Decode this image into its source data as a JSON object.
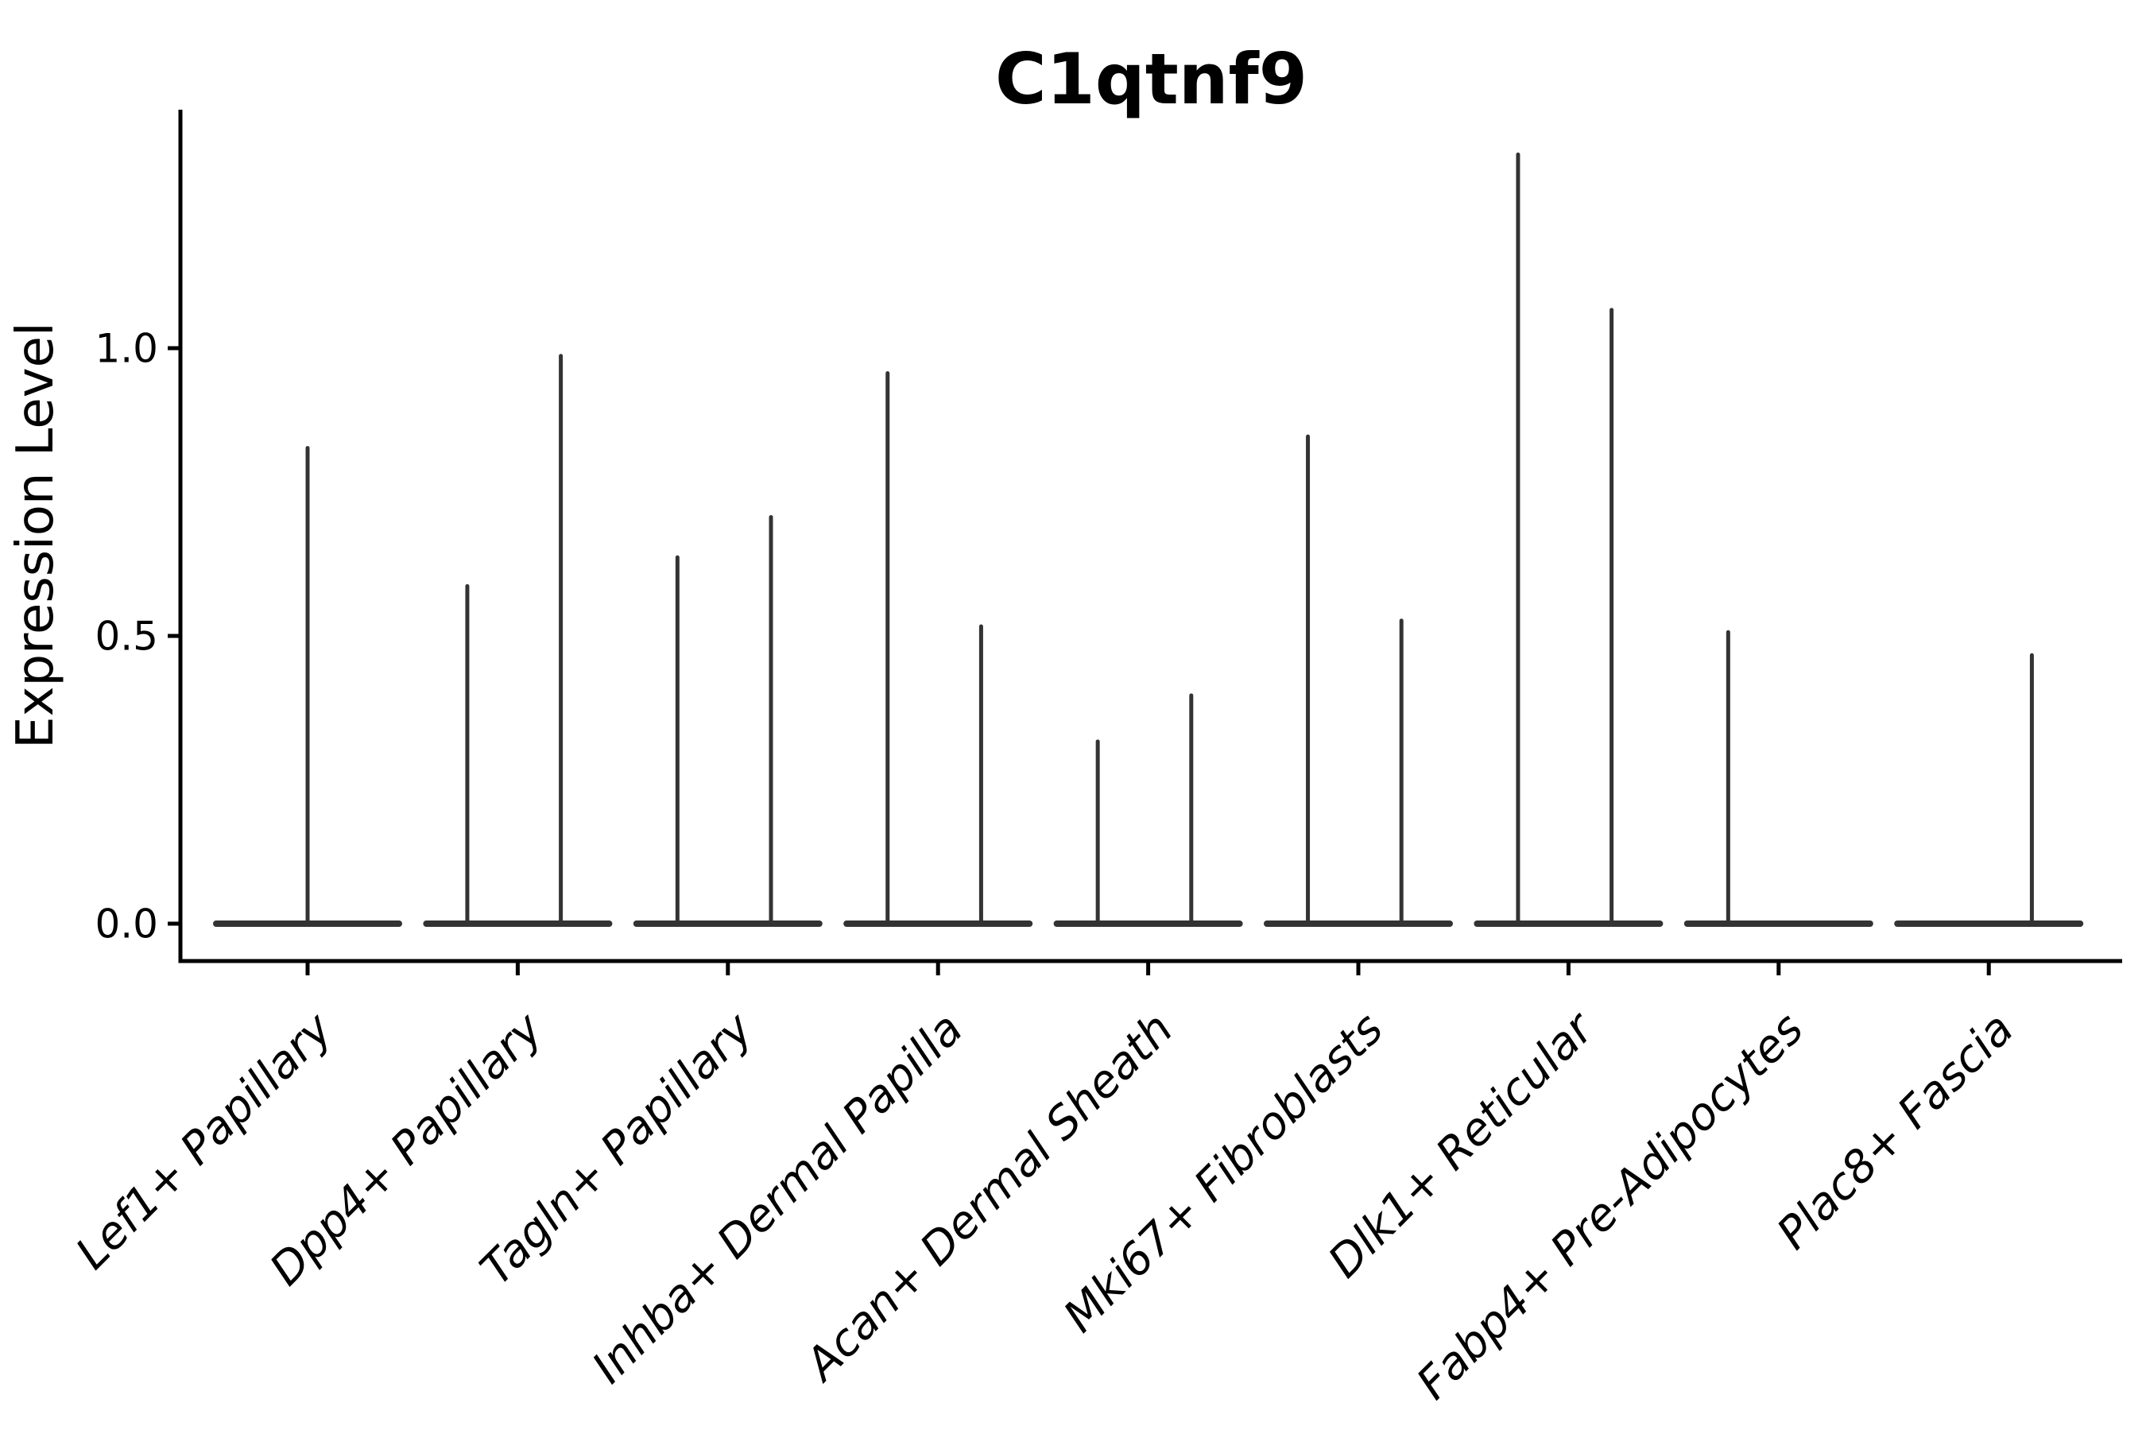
{
  "chart_data": {
    "type": "violin",
    "title": "C1qtnf9",
    "ylabel": "Expression Level",
    "xlabel": "",
    "grid": false,
    "legend": "none",
    "ylim": [
      -0.06,
      1.41
    ],
    "ytick_labels": [
      "0.0",
      "0.5",
      "1.0"
    ],
    "ytick_values": [
      0.0,
      0.5,
      1.0
    ],
    "violin_color": "#333333",
    "axis_color": "#000000",
    "baseline_value": 0.0,
    "categories": [
      "Lef1+ Papillary",
      "Dpp4+ Papillary",
      "Tagln+ Papillary",
      "Inhba+ Dermal Papilla",
      "Acan+ Dermal Sheath",
      "Mki67+ Fibroblasts",
      "Dlk1+ Reticular",
      "Fabp4+ Pre-Adipocytes",
      "Plac8+ Fascia"
    ],
    "violins": [
      {
        "category": "Lef1+ Papillary",
        "spikes": [
          {
            "side": "center",
            "max": 0.83
          }
        ]
      },
      {
        "category": "Dpp4+ Papillary",
        "spikes": [
          {
            "side": "left",
            "max": 0.59
          },
          {
            "side": "right",
            "max": 0.99
          }
        ]
      },
      {
        "category": "Tagln+ Papillary",
        "spikes": [
          {
            "side": "left",
            "max": 0.64
          },
          {
            "side": "right",
            "max": 0.71
          }
        ]
      },
      {
        "category": "Inhba+ Dermal Papilla",
        "spikes": [
          {
            "side": "left",
            "max": 0.96
          },
          {
            "side": "right",
            "max": 0.52
          }
        ]
      },
      {
        "category": "Acan+ Dermal Sheath",
        "spikes": [
          {
            "side": "left",
            "max": 0.32
          },
          {
            "side": "right",
            "max": 0.4
          }
        ]
      },
      {
        "category": "Mki67+ Fibroblasts",
        "spikes": [
          {
            "side": "left",
            "max": 0.85
          },
          {
            "side": "right",
            "max": 0.53
          }
        ]
      },
      {
        "category": "Dlk1+ Reticular",
        "spikes": [
          {
            "side": "left",
            "max": 1.34
          },
          {
            "side": "right",
            "max": 1.07
          }
        ]
      },
      {
        "category": "Fabp4+ Pre-Adipocytes",
        "spikes": [
          {
            "side": "left",
            "max": 0.51
          }
        ]
      },
      {
        "category": "Plac8+ Fascia",
        "spikes": [
          {
            "side": "right",
            "max": 0.47
          }
        ]
      }
    ]
  }
}
